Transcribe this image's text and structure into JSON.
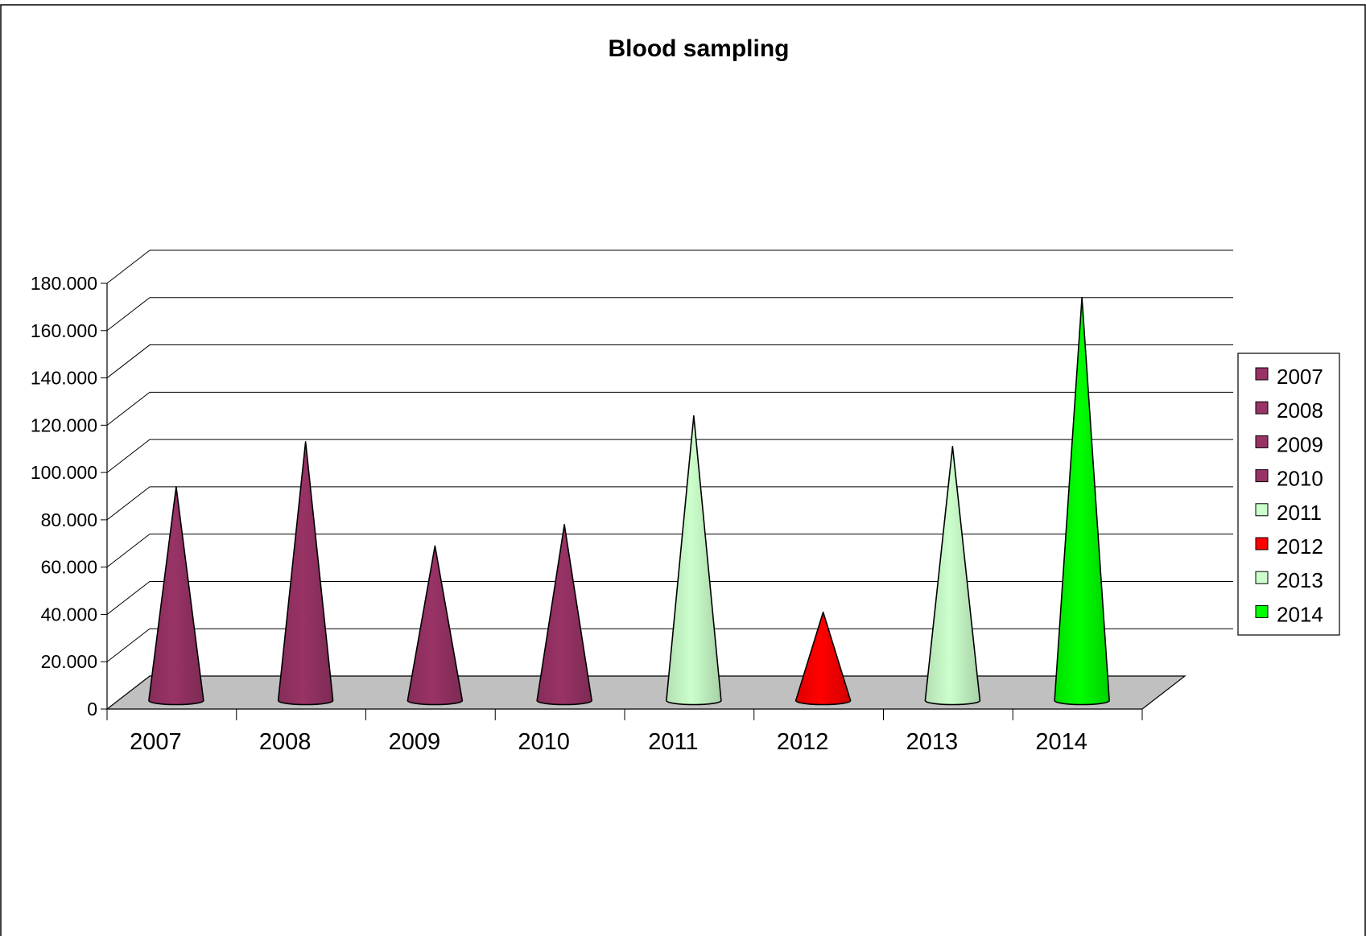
{
  "chart_data": {
    "type": "bar",
    "style": "3d-cone",
    "title": "Blood sampling",
    "xlabel": "",
    "ylabel": "",
    "categories": [
      "2007",
      "2008",
      "2009",
      "2010",
      "2011",
      "2012",
      "2013",
      "2014"
    ],
    "values": [
      87000,
      106000,
      62000,
      71000,
      117000,
      34000,
      104000,
      167000
    ],
    "ylim": [
      0,
      180000
    ],
    "y_ticks": [
      "0",
      "20.000",
      "40.000",
      "60.000",
      "80.000",
      "100.000",
      "120.000",
      "140.000",
      "160.000",
      "180.000"
    ],
    "grid": true,
    "legend": {
      "position": "right",
      "entries": [
        "2007",
        "2008",
        "2009",
        "2010",
        "2011",
        "2012",
        "2013",
        "2014"
      ]
    },
    "colors": [
      "#993366",
      "#993366",
      "#993366",
      "#993366",
      "#CCFFCC",
      "#FF0000",
      "#CCFFCC",
      "#00FF00"
    ],
    "floor_color": "#C0C0C0"
  }
}
